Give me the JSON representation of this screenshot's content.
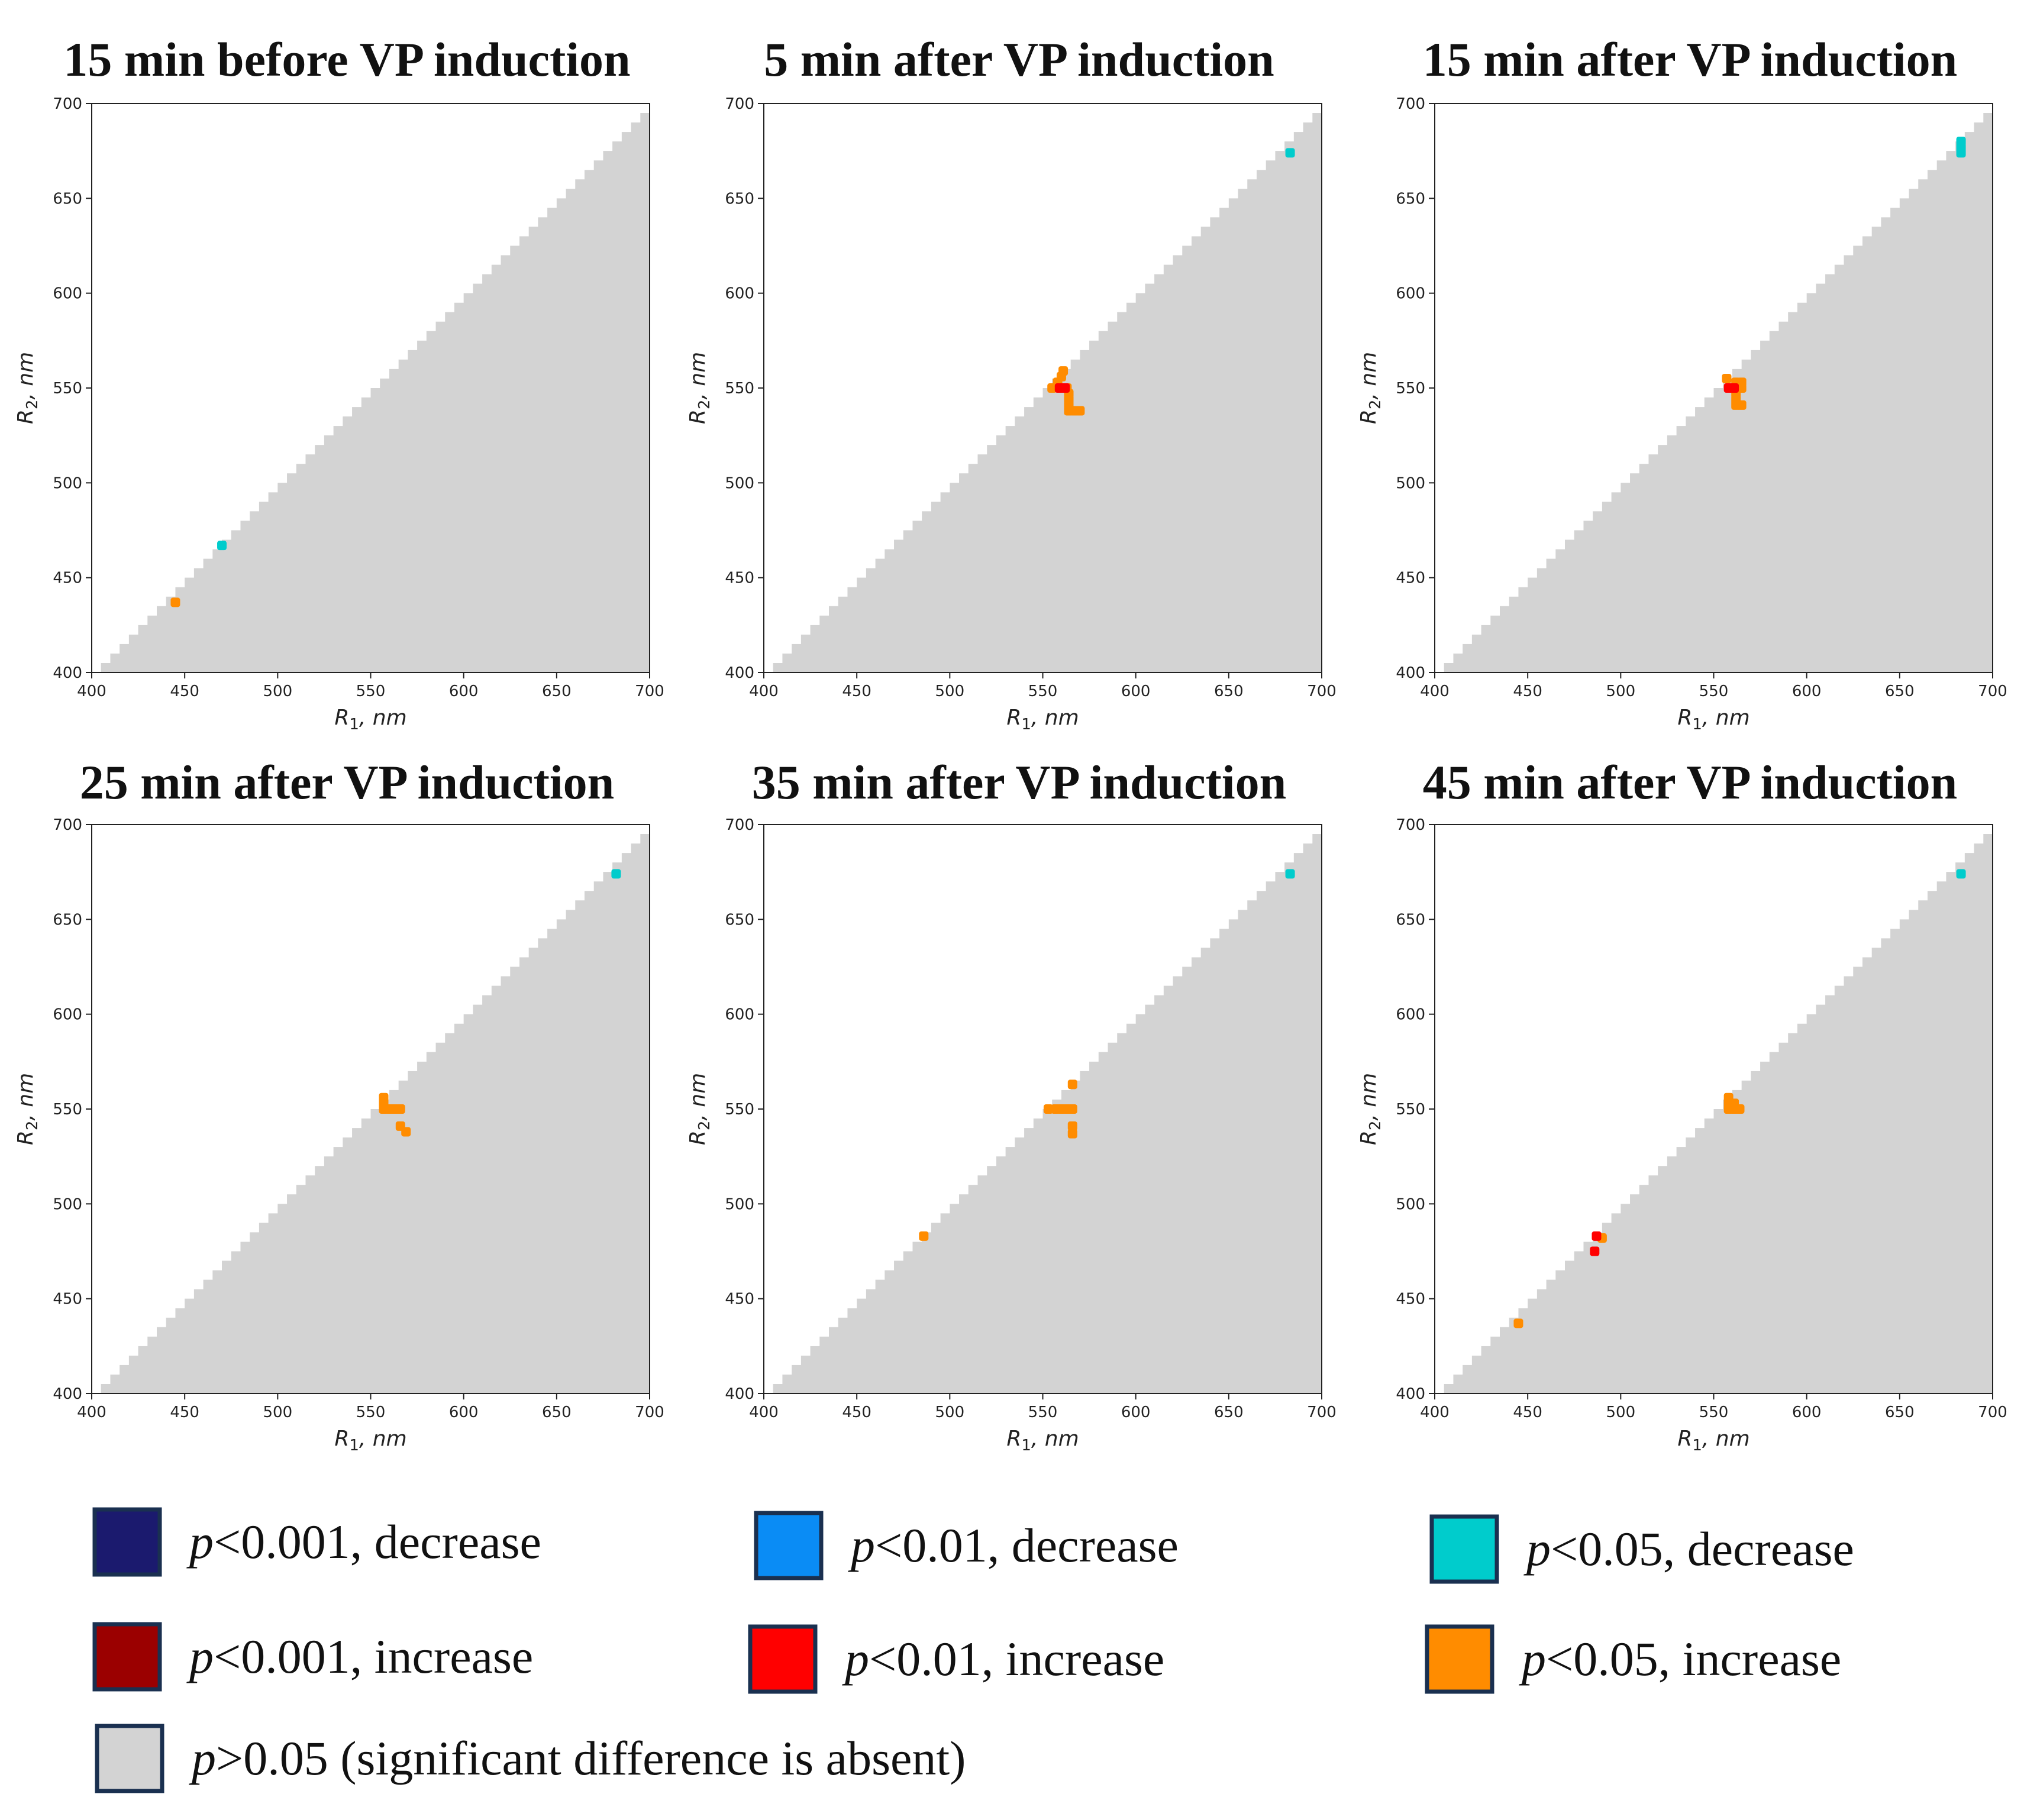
{
  "figure": {
    "axis_label_x": "R",
    "axis_label_y": "R",
    "axis_label_x_sub": "1",
    "axis_label_y_sub": "2",
    "axis_label_unit": ", nm"
  },
  "chart_data": [
    {
      "type": "heatmap",
      "title": "15 min before VP induction",
      "xlabel": "R1, nm",
      "ylabel": "R2, nm",
      "xlim": [
        400,
        700
      ],
      "ylim": [
        400,
        700
      ],
      "xticks": [
        400,
        450,
        500,
        550,
        600,
        650,
        700
      ],
      "yticks": [
        400,
        450,
        500,
        550,
        600,
        650,
        700
      ],
      "region": "R2 < R1 (lower-right triangle), default p>0.05",
      "points": [
        {
          "x": 470,
          "y": 467,
          "cat": "dec05"
        },
        {
          "x": 445,
          "y": 437,
          "cat": "inc05"
        }
      ]
    },
    {
      "type": "heatmap",
      "title": "5 min after VP induction",
      "xlabel": "R1, nm",
      "ylabel": "R2, nm",
      "xlim": [
        400,
        700
      ],
      "ylim": [
        400,
        700
      ],
      "xticks": [
        400,
        450,
        500,
        550,
        600,
        650,
        700
      ],
      "yticks": [
        400,
        450,
        500,
        550,
        600,
        650,
        700
      ],
      "region": "R2 < R1 (lower-right triangle), default p>0.05",
      "points": [
        {
          "x": 683,
          "y": 674,
          "cat": "dec05"
        },
        {
          "x": 555,
          "y": 550,
          "cat": "inc05"
        },
        {
          "x": 558,
          "y": 553,
          "cat": "inc05"
        },
        {
          "x": 560,
          "y": 556,
          "cat": "inc05"
        },
        {
          "x": 561,
          "y": 559,
          "cat": "inc05"
        },
        {
          "x": 563,
          "y": 550,
          "cat": "inc05"
        },
        {
          "x": 564,
          "y": 547,
          "cat": "inc05"
        },
        {
          "x": 564,
          "y": 544,
          "cat": "inc05"
        },
        {
          "x": 564,
          "y": 541,
          "cat": "inc05"
        },
        {
          "x": 564,
          "y": 538,
          "cat": "inc05"
        },
        {
          "x": 567,
          "y": 538,
          "cat": "inc05"
        },
        {
          "x": 570,
          "y": 538,
          "cat": "inc05"
        },
        {
          "x": 559,
          "y": 550,
          "cat": "inc01"
        },
        {
          "x": 562,
          "y": 550,
          "cat": "inc01"
        }
      ]
    },
    {
      "type": "heatmap",
      "title": "15 min after VP induction",
      "xlabel": "R1, nm",
      "ylabel": "R2, nm",
      "xlim": [
        400,
        700
      ],
      "ylim": [
        400,
        700
      ],
      "xticks": [
        400,
        450,
        500,
        550,
        600,
        650,
        700
      ],
      "yticks": [
        400,
        450,
        500,
        550,
        600,
        650,
        700
      ],
      "region": "R2 < R1 (lower-right triangle), default p>0.05",
      "points": [
        {
          "x": 683,
          "y": 674,
          "cat": "dec05"
        },
        {
          "x": 683,
          "y": 677,
          "cat": "dec05"
        },
        {
          "x": 683,
          "y": 680,
          "cat": "dec05"
        },
        {
          "x": 557,
          "y": 555,
          "cat": "inc05"
        },
        {
          "x": 562,
          "y": 553,
          "cat": "inc05"
        },
        {
          "x": 565,
          "y": 553,
          "cat": "inc05"
        },
        {
          "x": 562,
          "y": 547,
          "cat": "inc05"
        },
        {
          "x": 562,
          "y": 544,
          "cat": "inc05"
        },
        {
          "x": 562,
          "y": 541,
          "cat": "inc05"
        },
        {
          "x": 565,
          "y": 541,
          "cat": "inc05"
        },
        {
          "x": 565,
          "y": 550,
          "cat": "inc05"
        },
        {
          "x": 558,
          "y": 550,
          "cat": "inc01"
        },
        {
          "x": 561,
          "y": 550,
          "cat": "inc01"
        }
      ]
    },
    {
      "type": "heatmap",
      "title": "25 min after VP induction",
      "xlabel": "R1, nm",
      "ylabel": "R2, nm",
      "xlim": [
        400,
        700
      ],
      "ylim": [
        400,
        700
      ],
      "xticks": [
        400,
        450,
        500,
        550,
        600,
        650,
        700
      ],
      "yticks": [
        400,
        450,
        500,
        550,
        600,
        650,
        700
      ],
      "region": "R2 < R1 (lower-right triangle), default p>0.05",
      "points": [
        {
          "x": 682,
          "y": 674,
          "cat": "dec05"
        },
        {
          "x": 557,
          "y": 556,
          "cat": "inc05"
        },
        {
          "x": 557,
          "y": 553,
          "cat": "inc05"
        },
        {
          "x": 557,
          "y": 550,
          "cat": "inc05"
        },
        {
          "x": 560,
          "y": 550,
          "cat": "inc05"
        },
        {
          "x": 563,
          "y": 550,
          "cat": "inc05"
        },
        {
          "x": 566,
          "y": 550,
          "cat": "inc05"
        },
        {
          "x": 566,
          "y": 541,
          "cat": "inc05"
        },
        {
          "x": 569,
          "y": 538,
          "cat": "inc05"
        }
      ]
    },
    {
      "type": "heatmap",
      "title": "35 min after VP induction",
      "xlabel": "R1, nm",
      "ylabel": "R2, nm",
      "xlim": [
        400,
        700
      ],
      "ylim": [
        400,
        700
      ],
      "xticks": [
        400,
        450,
        500,
        550,
        600,
        650,
        700
      ],
      "yticks": [
        400,
        450,
        500,
        550,
        600,
        650,
        700
      ],
      "region": "R2 < R1 (lower-right triangle), default p>0.05",
      "points": [
        {
          "x": 683,
          "y": 674,
          "cat": "dec05"
        },
        {
          "x": 553,
          "y": 550,
          "cat": "inc05"
        },
        {
          "x": 557,
          "y": 550,
          "cat": "inc05"
        },
        {
          "x": 560,
          "y": 550,
          "cat": "inc05"
        },
        {
          "x": 563,
          "y": 550,
          "cat": "inc05"
        },
        {
          "x": 566,
          "y": 550,
          "cat": "inc05"
        },
        {
          "x": 566,
          "y": 563,
          "cat": "inc05"
        },
        {
          "x": 566,
          "y": 541,
          "cat": "inc05"
        },
        {
          "x": 566,
          "y": 537,
          "cat": "inc05"
        },
        {
          "x": 486,
          "y": 483,
          "cat": "inc05"
        }
      ]
    },
    {
      "type": "heatmap",
      "title": "45 min after VP induction",
      "xlabel": "R1, nm",
      "ylabel": "R2, nm",
      "xlim": [
        400,
        700
      ],
      "ylim": [
        400,
        700
      ],
      "xticks": [
        400,
        450,
        500,
        550,
        600,
        650,
        700
      ],
      "yticks": [
        400,
        450,
        500,
        550,
        600,
        650,
        700
      ],
      "region": "R2 < R1 (lower-right triangle), default p>0.05",
      "points": [
        {
          "x": 683,
          "y": 674,
          "cat": "dec05"
        },
        {
          "x": 558,
          "y": 556,
          "cat": "inc05"
        },
        {
          "x": 558,
          "y": 553,
          "cat": "inc05"
        },
        {
          "x": 558,
          "y": 550,
          "cat": "inc05"
        },
        {
          "x": 561,
          "y": 550,
          "cat": "inc05"
        },
        {
          "x": 564,
          "y": 550,
          "cat": "inc05"
        },
        {
          "x": 561,
          "y": 553,
          "cat": "inc05"
        },
        {
          "x": 490,
          "y": 482,
          "cat": "inc05"
        },
        {
          "x": 487,
          "y": 483,
          "cat": "inc01"
        },
        {
          "x": 486,
          "y": 475,
          "cat": "inc01"
        },
        {
          "x": 445,
          "y": 437,
          "cat": "inc05"
        }
      ]
    }
  ],
  "legend": [
    {
      "id": "dec001",
      "p": "p",
      "rest": "<0.001, decrease",
      "color": "#1b1a6e"
    },
    {
      "id": "dec01",
      "p": "p",
      "rest": "<0.01, decrease",
      "color": "#0a8cf5"
    },
    {
      "id": "dec05",
      "p": "p",
      "rest": "<0.05, decrease",
      "color": "#00cccc"
    },
    {
      "id": "inc001",
      "p": "p",
      "rest": "<0.001, increase",
      "color": "#9b0000"
    },
    {
      "id": "inc01",
      "p": "p",
      "rest": "<0.01, increase",
      "color": "#ff0000"
    },
    {
      "id": "inc05",
      "p": "p",
      "rest": "<0.05, increase",
      "color": "#ff8c00"
    },
    {
      "id": "ns",
      "p": "p",
      "rest": ">0.05 (significant difference is absent)",
      "color": "#d3d3d3"
    }
  ]
}
